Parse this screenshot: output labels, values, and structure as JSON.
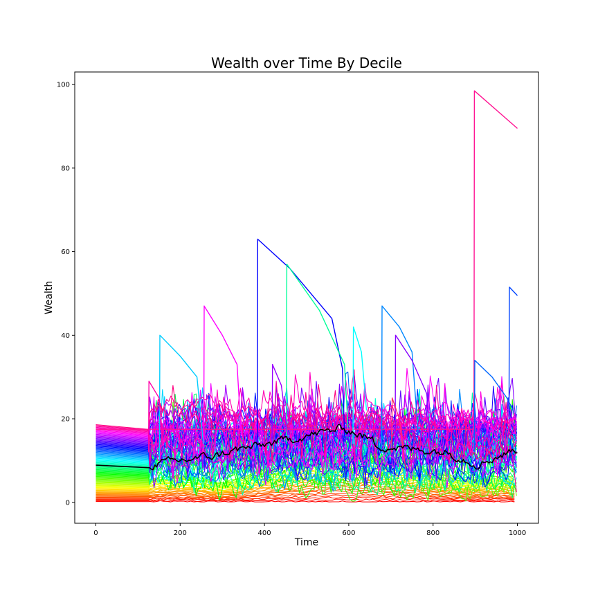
{
  "chart_data": {
    "type": "line",
    "title": "Wealth over Time By Decile",
    "xlabel": "Time",
    "ylabel": "Wealth",
    "xlim": [
      -50,
      1050
    ],
    "ylim": [
      -5,
      103
    ],
    "xticks": [
      0,
      200,
      400,
      600,
      800,
      1000
    ],
    "yticks": [
      0,
      20,
      40,
      60,
      80,
      100
    ],
    "grid": false,
    "legend": "none",
    "mean_series_color": "#000000",
    "spike_series": [
      {
        "color": "#ff1493",
        "x": [
          0,
          897,
          898,
          1000
        ],
        "y": [
          17.5,
          17.5,
          98.5,
          89.5
        ]
      },
      {
        "color": "#0000ff",
        "x": [
          383,
          384,
          460,
          560,
          585,
          590
        ],
        "y": [
          14,
          63,
          56,
          44,
          32,
          16
        ]
      },
      {
        "color": "#00ff99",
        "x": [
          452,
          453,
          530,
          590,
          598
        ],
        "y": [
          14,
          57,
          46,
          33,
          18
        ]
      },
      {
        "color": "#ff00ff",
        "x": [
          256,
          257,
          300,
          335,
          345
        ],
        "y": [
          12,
          47,
          40,
          33,
          16
        ]
      },
      {
        "color": "#00ccff",
        "x": [
          151,
          152,
          200,
          240,
          255
        ],
        "y": [
          10,
          40,
          35,
          30,
          14
        ]
      },
      {
        "color": "#0088ff",
        "x": [
          678,
          679,
          720,
          750,
          765
        ],
        "y": [
          12,
          47,
          42,
          36,
          16
        ]
      },
      {
        "color": "#8800ff",
        "x": [
          710,
          711,
          750,
          785,
          795
        ],
        "y": [
          12,
          40,
          34,
          26,
          12
        ]
      },
      {
        "color": "#0066ff",
        "x": [
          898,
          899,
          940,
          975,
          990
        ],
        "y": [
          12,
          34,
          30,
          25,
          22
        ]
      },
      {
        "color": "#0044ff",
        "x": [
          980,
          981,
          1000
        ],
        "y": [
          20,
          51.5,
          49.5
        ]
      },
      {
        "color": "#ff00aa",
        "x": [
          125,
          126,
          150,
          160
        ],
        "y": [
          12,
          29,
          25,
          14
        ]
      },
      {
        "color": "#9900ff",
        "x": [
          418,
          419,
          440,
          455
        ],
        "y": [
          14,
          33,
          28,
          16
        ]
      },
      {
        "color": "#00ffff",
        "x": [
          610,
          611,
          630,
          642
        ],
        "y": [
          14,
          42,
          36,
          22
        ]
      },
      {
        "color": "#ff3366",
        "x": [
          702,
          703,
          720,
          735
        ],
        "y": [
          12,
          25,
          20,
          8
        ]
      }
    ]
  }
}
